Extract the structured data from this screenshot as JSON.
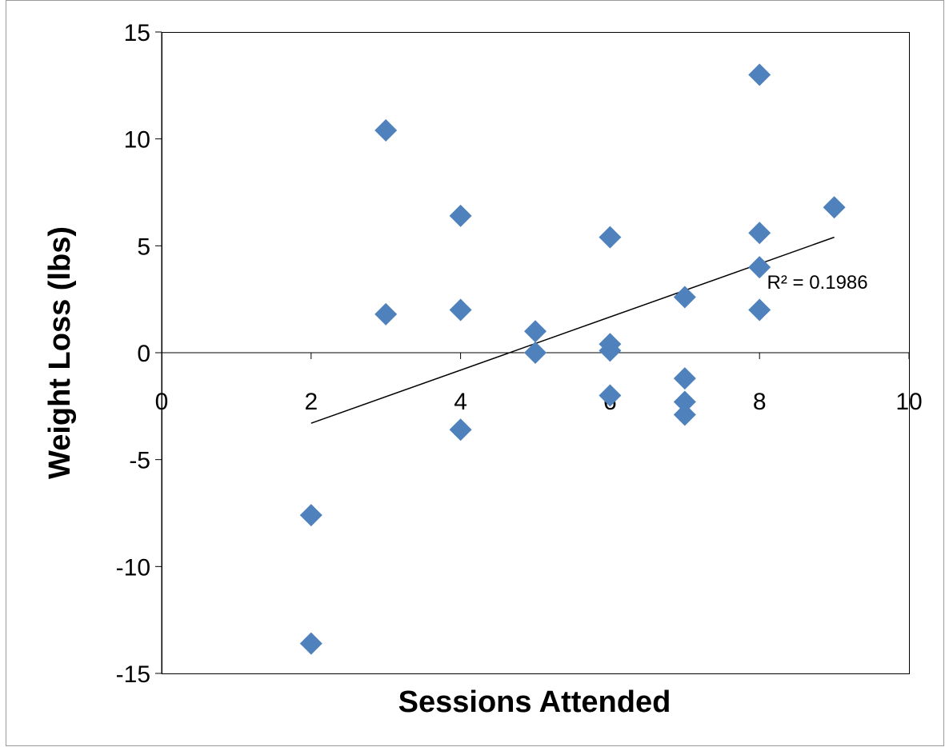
{
  "chart_data": {
    "type": "scatter",
    "title": "",
    "xlabel": "Sessions Attended",
    "ylabel": "Weight Loss (lbs)",
    "xlim": [
      0,
      10
    ],
    "ylim": [
      -15,
      15
    ],
    "xticks": [
      0,
      2,
      4,
      6,
      8,
      10
    ],
    "yticks": [
      -15,
      -10,
      -5,
      0,
      5,
      10,
      15
    ],
    "grid": false,
    "legend": "none",
    "marker": "diamond",
    "marker_color": "#4F81BD",
    "series": [
      {
        "x": [
          2,
          2,
          3,
          3,
          4,
          4,
          4,
          5,
          5,
          6,
          6,
          6,
          6,
          7,
          7,
          7,
          7,
          8,
          8,
          8,
          8,
          9
        ],
        "y": [
          -7.6,
          -13.6,
          10.4,
          1.8,
          6.4,
          2.0,
          -3.6,
          1.0,
          0.0,
          5.4,
          0.4,
          0.1,
          -2.0,
          2.6,
          -1.2,
          -2.3,
          -2.9,
          13.0,
          5.6,
          4.0,
          2.0,
          6.8
        ]
      }
    ],
    "trendline": {
      "type": "linear",
      "x": [
        2,
        9
      ],
      "y": [
        -3.3,
        5.4
      ],
      "color": "#000000",
      "label": "R² = 0.1986"
    }
  }
}
